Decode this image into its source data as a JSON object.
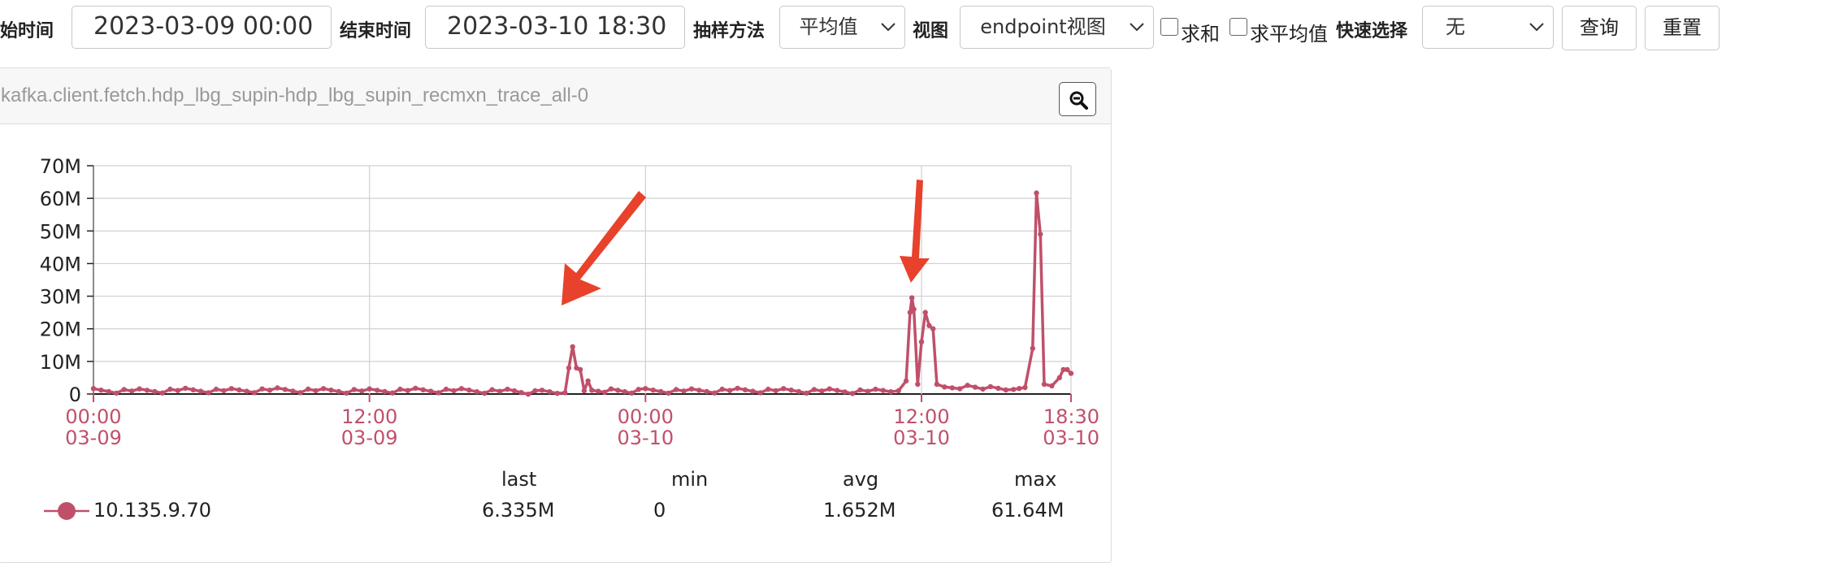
{
  "toolbar": {
    "start_label": "开始时间",
    "start_value": "2023-03-09 00:00",
    "end_label": "结束时间",
    "end_value": "2023-03-10 18:30",
    "sampling_label": "抽样方法",
    "sampling_value": "平均值",
    "view_label": "视图",
    "view_value": "endpoint视图",
    "sum_label": "求和",
    "avg_label": "求平均值",
    "quick_label": "快速选择",
    "quick_value": "无",
    "query_label": "查询",
    "reset_label": "重置"
  },
  "panel": {
    "title": "kafka.client.fetch.hdp_lbg_supin-hdp_lbg_supin_recmxn_trace_all-0",
    "zoom_icon": "zoom-out-icon"
  },
  "colors": {
    "series": "#c0506a",
    "arrow": "#e8412c",
    "grid": "#d0d0d0",
    "axis_text": "#c0506a"
  },
  "chart_data": {
    "type": "line",
    "x_ticks": [
      {
        "time": "00:00",
        "date": "03-09"
      },
      {
        "time": "12:00",
        "date": "03-09"
      },
      {
        "time": "00:00",
        "date": "03-10"
      },
      {
        "time": "12:00",
        "date": "03-10"
      },
      {
        "time": "18:30",
        "date": "03-10"
      }
    ],
    "xlim": [
      "2023-03-09 00:00",
      "2023-03-10 18:30"
    ],
    "ylim": [
      0,
      70000000
    ],
    "y_ticks": [
      "0",
      "10M",
      "20M",
      "30M",
      "40M",
      "50M",
      "60M",
      "70M"
    ],
    "grid": true,
    "series": [
      {
        "name": "10.135.9.70",
        "points": [
          [
            "2023-03-09 00:00",
            1.0
          ],
          [
            "2023-03-09 02:00",
            0.9
          ],
          [
            "2023-03-09 04:00",
            1.1
          ],
          [
            "2023-03-09 06:00",
            1.0
          ],
          [
            "2023-03-09 08:00",
            1.2
          ],
          [
            "2023-03-09 10:00",
            1.0
          ],
          [
            "2023-03-09 12:00",
            0.9
          ],
          [
            "2023-03-09 14:00",
            1.1
          ],
          [
            "2023-03-09 16:00",
            1.0
          ],
          [
            "2023-03-09 18:00",
            0.8
          ],
          [
            "2023-03-09 19:30",
            0.5
          ],
          [
            "2023-03-09 20:30",
            0.4
          ],
          [
            "2023-03-09 20:40",
            8.0
          ],
          [
            "2023-03-09 20:50",
            14.5
          ],
          [
            "2023-03-09 21:00",
            8.0
          ],
          [
            "2023-03-09 21:10",
            7.5
          ],
          [
            "2023-03-09 21:20",
            1.0
          ],
          [
            "2023-03-09 21:30",
            4.0
          ],
          [
            "2023-03-09 21:40",
            0.5
          ],
          [
            "2023-03-09 22:30",
            0.9
          ],
          [
            "2023-03-10 00:00",
            1.0
          ],
          [
            "2023-03-10 02:00",
            0.9
          ],
          [
            "2023-03-10 04:00",
            1.1
          ],
          [
            "2023-03-10 06:00",
            1.0
          ],
          [
            "2023-03-10 08:00",
            0.9
          ],
          [
            "2023-03-10 10:00",
            0.8
          ],
          [
            "2023-03-10 11:00",
            1.0
          ],
          [
            "2023-03-10 11:20",
            4.0
          ],
          [
            "2023-03-10 11:30",
            25.0
          ],
          [
            "2023-03-10 11:35",
            29.5
          ],
          [
            "2023-03-10 11:40",
            26.0
          ],
          [
            "2023-03-10 11:50",
            3.0
          ],
          [
            "2023-03-10 12:00",
            16.0
          ],
          [
            "2023-03-10 12:10",
            25.0
          ],
          [
            "2023-03-10 12:20",
            21.0
          ],
          [
            "2023-03-10 12:30",
            20.0
          ],
          [
            "2023-03-10 12:40",
            3.0
          ],
          [
            "2023-03-10 13:00",
            1.5
          ],
          [
            "2023-03-10 14:00",
            2.0
          ],
          [
            "2023-03-10 15:00",
            1.6
          ],
          [
            "2023-03-10 16:00",
            1.4
          ],
          [
            "2023-03-10 16:30",
            2.0
          ],
          [
            "2023-03-10 16:50",
            14.0
          ],
          [
            "2023-03-10 17:00",
            61.64
          ],
          [
            "2023-03-10 17:10",
            49.0
          ],
          [
            "2023-03-10 17:20",
            3.0
          ],
          [
            "2023-03-10 17:40",
            2.5
          ],
          [
            "2023-03-10 18:00",
            5.0
          ],
          [
            "2023-03-10 18:10",
            7.5
          ],
          [
            "2023-03-10 18:20",
            7.5
          ],
          [
            "2023-03-10 18:30",
            6.335
          ]
        ],
        "unit": "M",
        "stats": {
          "last": "6.335M",
          "min": "0",
          "avg": "1.652M",
          "max": "61.64M"
        }
      }
    ],
    "legend_headers": {
      "last": "last",
      "min": "min",
      "avg": "avg",
      "max": "max"
    }
  }
}
